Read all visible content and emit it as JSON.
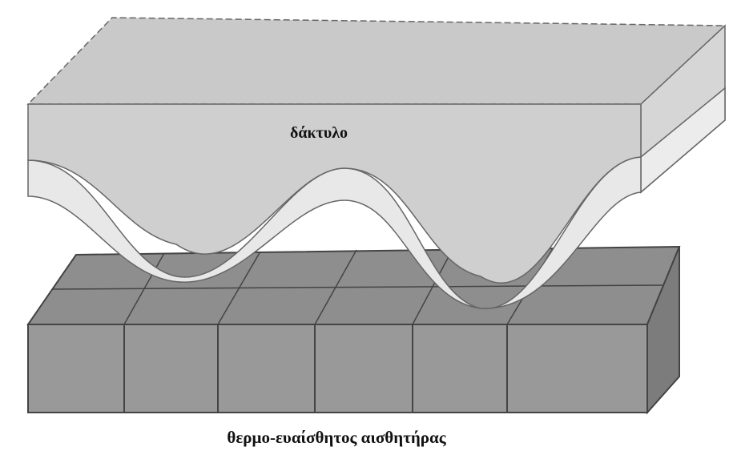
{
  "labels": {
    "finger": "δάκτυλο",
    "sensor": "θερμο-ευαίσθητος αισθητήρας"
  }
}
